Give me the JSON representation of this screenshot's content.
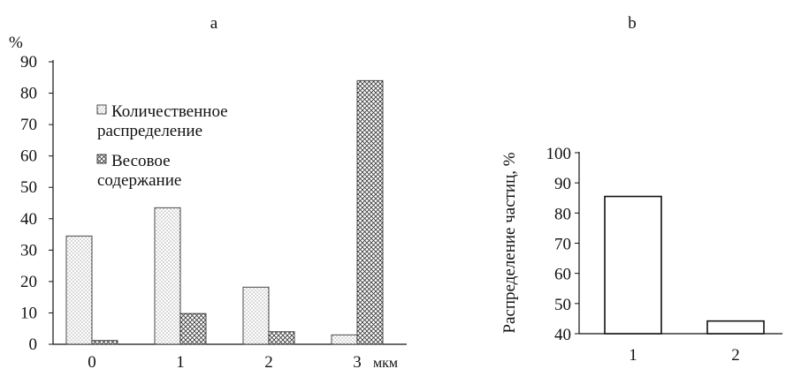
{
  "chart_data": [
    {
      "panel_label": "a",
      "type": "bar",
      "ylabel": "%",
      "ylim": [
        0,
        90
      ],
      "yticks": [
        0,
        10,
        20,
        30,
        40,
        50,
        60,
        70,
        80,
        90
      ],
      "categories": [
        "0",
        "1",
        "2",
        "3"
      ],
      "x_unit": "мкм",
      "grid": false,
      "legend_position": "upper-left",
      "series": [
        {
          "name": "Количественное распределение",
          "name_lines": [
            "Количественное",
            "распределение"
          ],
          "pattern": "dots",
          "values": [
            34.5,
            43.5,
            18.2,
            3.0
          ]
        },
        {
          "name": "Весовое содержание",
          "name_lines": [
            "Весовое",
            "содержание"
          ],
          "pattern": "crosshatch",
          "values": [
            1.2,
            9.8,
            4.0,
            84.0
          ]
        }
      ]
    },
    {
      "panel_label": "b",
      "type": "bar",
      "ylabel": "Распределение частиц, %",
      "ylim": [
        40,
        100
      ],
      "yticks": [
        40,
        50,
        60,
        70,
        80,
        90,
        100
      ],
      "categories": [
        "1",
        "2"
      ],
      "grid": false,
      "series": [
        {
          "pattern": "none",
          "values": [
            85.5,
            44.2
          ]
        }
      ]
    }
  ],
  "colors": {
    "axis": "#111111",
    "bar_fill": "#ffffff",
    "pattern": "#333333"
  }
}
